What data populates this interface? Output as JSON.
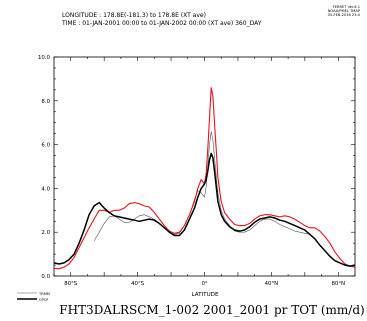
{
  "header": {
    "longitude_line": "LONGITUDE : 178.8E(-181.3) to 178.8E (XT ave)",
    "time_line": "TIME : 01-JAN-2001 00:00 to 01-JAN-2002 00:00 (XT ave) 360_DAY"
  },
  "corner": {
    "line1": "FERRET Ver.6.1",
    "line2": "NOAA/PMEL TMAP",
    "line3": "05-FEB-2016 23:0"
  },
  "chart_data": {
    "type": "line",
    "title": "FHT3DALRSCM_1-002 2001_2001 pr TOT (mm/d)",
    "xlabel": "LATITUDE",
    "ylabel": "",
    "xlim": [
      -90,
      90
    ],
    "ylim": [
      0,
      10
    ],
    "x_ticks": [
      -80,
      -60,
      -40,
      -20,
      0,
      20,
      40,
      60,
      80
    ],
    "x_tick_labels": [
      "80°S",
      "",
      "40°S",
      "",
      "0°",
      "",
      "40°N",
      "",
      "80°N"
    ],
    "y_ticks": [
      0,
      2,
      4,
      6,
      8,
      10
    ],
    "y_tick_labels": [
      "0.0",
      "2.0",
      "4.0",
      "6.0",
      "8.0",
      "10.0"
    ],
    "grid": false,
    "legend_position": "bottom-left",
    "series": [
      {
        "name": "",
        "color": "#e8141c",
        "width": 1.1,
        "x": [
          -90,
          -87,
          -84,
          -81,
          -78,
          -75,
          -72,
          -69,
          -66,
          -63,
          -60,
          -57,
          -54,
          -51,
          -48,
          -45,
          -42,
          -39,
          -36,
          -33,
          -30,
          -27,
          -24,
          -21,
          -18,
          -15,
          -12,
          -9,
          -6,
          -4,
          -2,
          0,
          1,
          2,
          3,
          4,
          5,
          6,
          7,
          8,
          10,
          12,
          15,
          18,
          21,
          24,
          27,
          30,
          33,
          36,
          39,
          42,
          45,
          48,
          51,
          54,
          57,
          60,
          63,
          66,
          69,
          72,
          75,
          78,
          81,
          84,
          87,
          90
        ],
        "y": [
          0.35,
          0.33,
          0.4,
          0.55,
          0.85,
          1.3,
          1.75,
          2.2,
          2.6,
          3.0,
          3.0,
          2.9,
          3.0,
          3.0,
          3.1,
          3.3,
          3.35,
          3.3,
          3.2,
          3.15,
          2.9,
          2.6,
          2.3,
          2.05,
          1.95,
          2.0,
          2.3,
          2.8,
          3.4,
          4.0,
          4.4,
          4.2,
          4.7,
          5.8,
          7.2,
          8.6,
          8.2,
          7.0,
          5.8,
          4.5,
          3.4,
          2.9,
          2.6,
          2.35,
          2.3,
          2.3,
          2.4,
          2.6,
          2.75,
          2.8,
          2.8,
          2.75,
          2.7,
          2.75,
          2.7,
          2.6,
          2.45,
          2.3,
          2.2,
          2.2,
          2.05,
          1.8,
          1.5,
          1.1,
          0.8,
          0.55,
          0.45,
          0.4
        ]
      },
      {
        "name": "TRMM",
        "color": "#555555",
        "width": 0.6,
        "x": [
          -66,
          -63,
          -60,
          -57,
          -54,
          -51,
          -48,
          -45,
          -42,
          -39,
          -36,
          -33,
          -30,
          -27,
          -24,
          -21,
          -18,
          -15,
          -12,
          -9,
          -6,
          -4,
          -2,
          0,
          1,
          2,
          3,
          4,
          5,
          6,
          7,
          8,
          10,
          12,
          15,
          18,
          21,
          24,
          27,
          30,
          33,
          36,
          39,
          42,
          45,
          48,
          51,
          54,
          57,
          60,
          63
        ],
        "y": [
          1.6,
          2.0,
          2.4,
          2.7,
          2.75,
          2.6,
          2.45,
          2.45,
          2.6,
          2.75,
          2.8,
          2.7,
          2.6,
          2.4,
          2.2,
          2.0,
          1.9,
          1.95,
          2.3,
          2.8,
          3.5,
          3.9,
          3.8,
          3.6,
          4.1,
          5.0,
          6.0,
          6.6,
          6.2,
          5.4,
          4.6,
          3.8,
          3.0,
          2.6,
          2.3,
          2.05,
          2.0,
          2.0,
          2.1,
          2.3,
          2.5,
          2.6,
          2.6,
          2.5,
          2.35,
          2.25,
          2.15,
          2.05,
          2.0,
          1.95,
          1.9
        ]
      },
      {
        "name": "CPCP",
        "color": "#000000",
        "width": 1.5,
        "x": [
          -90,
          -87,
          -84,
          -81,
          -78,
          -75,
          -72,
          -69,
          -66,
          -63,
          -60,
          -57,
          -54,
          -51,
          -48,
          -45,
          -42,
          -39,
          -36,
          -33,
          -30,
          -27,
          -24,
          -21,
          -18,
          -15,
          -12,
          -9,
          -6,
          -4,
          -2,
          0,
          1,
          2,
          3,
          4,
          5,
          6,
          7,
          8,
          10,
          12,
          15,
          18,
          21,
          24,
          27,
          30,
          33,
          36,
          39,
          42,
          45,
          48,
          51,
          54,
          57,
          60,
          63,
          66,
          69,
          72,
          75,
          78,
          81,
          84,
          87,
          90
        ],
        "y": [
          0.6,
          0.55,
          0.6,
          0.75,
          1.0,
          1.5,
          2.1,
          2.8,
          3.2,
          3.35,
          3.1,
          2.9,
          2.75,
          2.7,
          2.65,
          2.6,
          2.55,
          2.5,
          2.55,
          2.6,
          2.55,
          2.4,
          2.2,
          2.0,
          1.85,
          1.85,
          2.1,
          2.6,
          3.1,
          3.6,
          4.0,
          4.2,
          4.4,
          4.8,
          5.3,
          5.6,
          5.4,
          4.8,
          4.1,
          3.4,
          2.8,
          2.5,
          2.25,
          2.1,
          2.05,
          2.1,
          2.25,
          2.45,
          2.6,
          2.65,
          2.7,
          2.65,
          2.55,
          2.5,
          2.4,
          2.3,
          2.2,
          2.1,
          1.9,
          1.7,
          1.4,
          1.15,
          0.9,
          0.7,
          0.6,
          0.5,
          0.45,
          0.5
        ]
      }
    ]
  }
}
